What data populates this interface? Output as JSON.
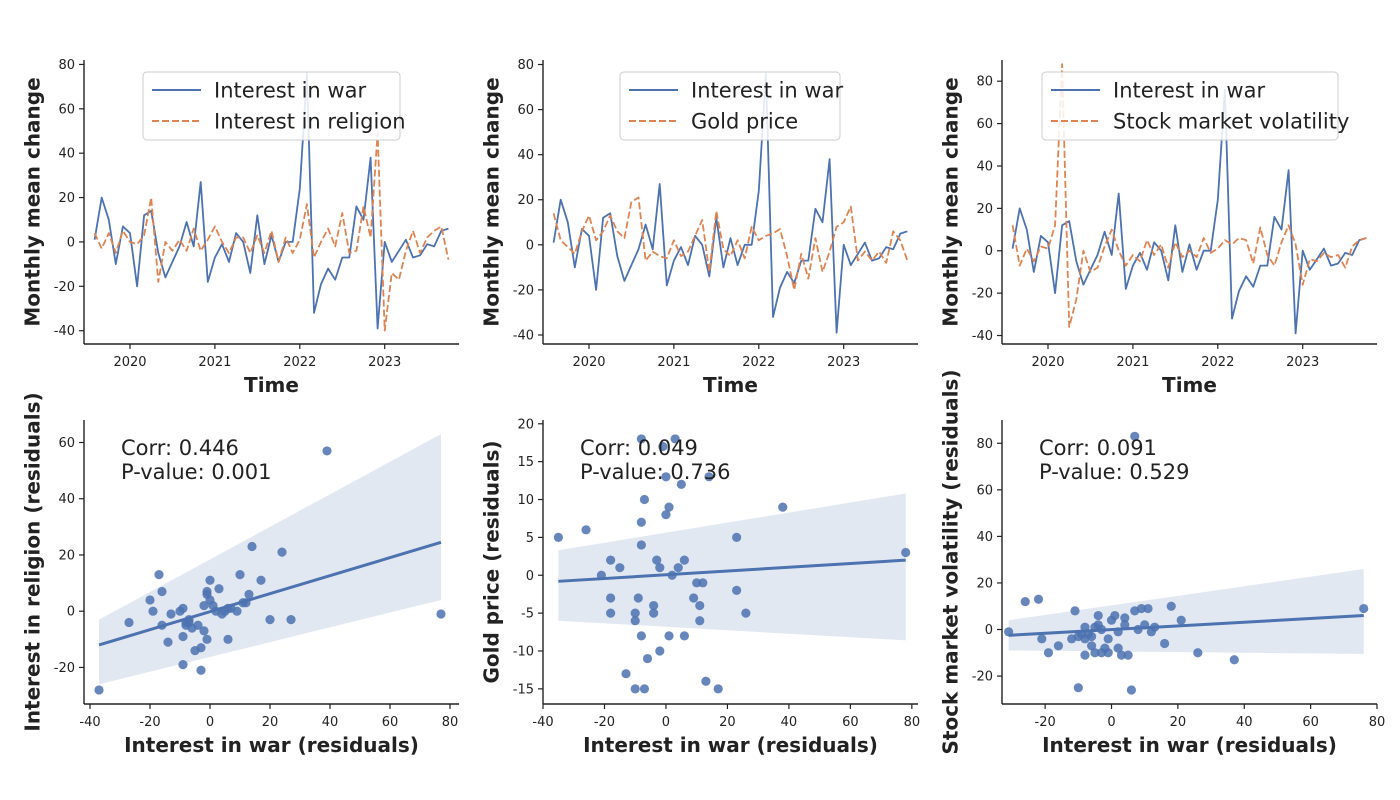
{
  "chart_data": [
    {
      "type": "line",
      "xlabel": "Time",
      "ylabel": "Monthly mean change",
      "ylim": [
        -46,
        82
      ],
      "yticks": [
        -40,
        -20,
        0,
        20,
        40,
        60,
        80
      ],
      "x_start": "2019-08",
      "xlim_months": [
        -1.5,
        51.5
      ],
      "xticks": [
        {
          "label": "2020",
          "month_index": 5
        },
        {
          "label": "2021",
          "month_index": 17
        },
        {
          "label": "2022",
          "month_index": 29
        },
        {
          "label": "2023",
          "month_index": 41
        }
      ],
      "series": [
        {
          "name": "Interest in war",
          "color": "#4c72b0",
          "dash": "solid",
          "values": [
            1,
            20,
            10,
            -10,
            7,
            4,
            -20,
            12,
            14,
            -5,
            -16,
            -9,
            -2,
            9,
            -2,
            27,
            -18,
            -7,
            -1,
            -9,
            4,
            0,
            -14,
            12,
            -10,
            3,
            -9,
            0,
            0,
            24,
            76,
            -32,
            -19,
            -12,
            -17,
            -7,
            -7,
            16,
            10,
            38,
            -39,
            0,
            -9,
            -4,
            1,
            -7,
            -6,
            -1,
            -2,
            5,
            6
          ]
        },
        {
          "name": "Interest in religion",
          "color": "#dd8452",
          "dash": "dashed",
          "values": [
            4,
            -3,
            4,
            -5,
            5,
            0,
            -1,
            3,
            20,
            -18,
            0,
            -4,
            1,
            -4,
            6,
            -4,
            1,
            7,
            0,
            -5,
            2,
            2,
            -5,
            3,
            -5,
            5,
            -9,
            2,
            -5,
            1,
            17,
            -7,
            0,
            6,
            -2,
            13,
            -5,
            -4,
            16,
            2,
            49,
            -40,
            -14,
            -17,
            -4,
            5,
            -5,
            2,
            5,
            7,
            -8
          ]
        }
      ]
    },
    {
      "type": "line",
      "xlabel": "Time",
      "ylabel": "Monthly mean change",
      "ylim": [
        -44,
        82
      ],
      "yticks": [
        -40,
        -20,
        0,
        20,
        40,
        60,
        80
      ],
      "x_start": "2019-08",
      "xlim_months": [
        -1.5,
        51.5
      ],
      "xticks": [
        {
          "label": "2020",
          "month_index": 5
        },
        {
          "label": "2021",
          "month_index": 17
        },
        {
          "label": "2022",
          "month_index": 29
        },
        {
          "label": "2023",
          "month_index": 41
        }
      ],
      "series": [
        {
          "name": "Interest in war",
          "color": "#4c72b0",
          "dash": "solid",
          "values": [
            1,
            20,
            10,
            -10,
            7,
            4,
            -20,
            12,
            14,
            -5,
            -16,
            -9,
            -2,
            9,
            -2,
            27,
            -18,
            -7,
            -1,
            -9,
            4,
            0,
            -14,
            12,
            -10,
            3,
            -9,
            0,
            0,
            24,
            76,
            -32,
            -19,
            -12,
            -17,
            -7,
            -7,
            16,
            10,
            38,
            -39,
            0,
            -9,
            -4,
            1,
            -7,
            -6,
            -1,
            -2,
            5,
            6
          ]
        },
        {
          "name": "Gold price",
          "color": "#dd8452",
          "dash": "dashed",
          "values": [
            14,
            2,
            -1,
            -4,
            6,
            13,
            2,
            6,
            13,
            6,
            3,
            19,
            21,
            -7,
            -3,
            -5,
            -6,
            2,
            -5,
            -3,
            4,
            11,
            -12,
            15,
            -2,
            -5,
            2,
            -6,
            8,
            2,
            4,
            5,
            7,
            -5,
            -20,
            -4,
            -15,
            3,
            -12,
            -3,
            8,
            10,
            17,
            -7,
            -3,
            -7,
            -3,
            -8,
            6,
            2,
            -7
          ]
        }
      ]
    },
    {
      "type": "line",
      "xlabel": "Time",
      "ylabel": "Monthly mean change",
      "ylim": [
        -44,
        90
      ],
      "yticks": [
        -40,
        -20,
        0,
        20,
        40,
        60,
        80
      ],
      "x_start": "2019-08",
      "xlim_months": [
        -1.5,
        51.5
      ],
      "xticks": [
        {
          "label": "2020",
          "month_index": 5
        },
        {
          "label": "2021",
          "month_index": 17
        },
        {
          "label": "2022",
          "month_index": 29
        },
        {
          "label": "2023",
          "month_index": 41
        }
      ],
      "series": [
        {
          "name": "Interest in war",
          "color": "#4c72b0",
          "dash": "solid",
          "values": [
            1,
            20,
            10,
            -10,
            7,
            4,
            -20,
            12,
            14,
            -5,
            -16,
            -9,
            -2,
            9,
            -2,
            27,
            -18,
            -7,
            -1,
            -9,
            4,
            0,
            -14,
            12,
            -10,
            3,
            -9,
            0,
            0,
            24,
            76,
            -32,
            -19,
            -12,
            -17,
            -7,
            -7,
            16,
            10,
            38,
            -39,
            0,
            -9,
            -4,
            1,
            -7,
            -6,
            -1,
            -2,
            5,
            6
          ]
        },
        {
          "name": "Stock market volatility",
          "color": "#dd8452",
          "dash": "dashed",
          "values": [
            12,
            -7,
            1,
            -5,
            2,
            1,
            12,
            88,
            -36,
            -23,
            0,
            -10,
            -8,
            2,
            10,
            0,
            -7,
            -2,
            -5,
            5,
            -2,
            3,
            -8,
            4,
            -3,
            0,
            -3,
            6,
            -1,
            1,
            5,
            3,
            6,
            5,
            -6,
            11,
            -2,
            -7,
            4,
            12,
            3,
            -16,
            -4,
            -5,
            -1,
            -3,
            -2,
            -8,
            2,
            5,
            6
          ]
        }
      ]
    },
    {
      "type": "scatter",
      "xlabel": "Interest in war (residuals)",
      "ylabel": "Interest in religion (residuals)",
      "xlim": [
        -42,
        83
      ],
      "ylim": [
        -33,
        68
      ],
      "xticks": [
        -40,
        -20,
        0,
        20,
        40,
        60,
        80
      ],
      "yticks": [
        -20,
        0,
        20,
        40,
        60
      ],
      "annotation": [
        "Corr: 0.446",
        "P-value: 0.001"
      ],
      "color": "#4c72b0",
      "regression": {
        "x": [
          -37,
          77
        ],
        "y": [
          -12,
          24.5
        ],
        "ci_upper": [
          -3,
          63
        ],
        "ci_lower": [
          -26,
          4
        ]
      },
      "points": [
        [
          -37,
          -28
        ],
        [
          -27,
          -4
        ],
        [
          -20,
          4
        ],
        [
          -17,
          13
        ],
        [
          -16,
          -5
        ],
        [
          -19,
          0
        ],
        [
          -16,
          7
        ],
        [
          -14,
          -11
        ],
        [
          -13,
          -1
        ],
        [
          -10,
          0
        ],
        [
          -9,
          -9
        ],
        [
          -9,
          1
        ],
        [
          -9,
          -19
        ],
        [
          -8,
          -5
        ],
        [
          -8,
          -4
        ],
        [
          -7,
          -3
        ],
        [
          -7,
          -4
        ],
        [
          -6,
          -6
        ],
        [
          -5,
          -14
        ],
        [
          -4,
          -5
        ],
        [
          -3,
          -21
        ],
        [
          -3,
          -13
        ],
        [
          -2,
          -7
        ],
        [
          -2,
          2
        ],
        [
          -1,
          6
        ],
        [
          -1,
          7
        ],
        [
          -1,
          -10
        ],
        [
          0,
          11
        ],
        [
          0,
          4
        ],
        [
          1,
          2
        ],
        [
          2,
          0
        ],
        [
          3,
          8
        ],
        [
          4,
          -1
        ],
        [
          5,
          0
        ],
        [
          6,
          1
        ],
        [
          6,
          -10
        ],
        [
          7,
          1
        ],
        [
          9,
          0
        ],
        [
          10,
          13
        ],
        [
          11,
          3
        ],
        [
          12,
          3
        ],
        [
          13,
          6
        ],
        [
          14,
          23
        ],
        [
          17,
          11
        ],
        [
          20,
          -3
        ],
        [
          24,
          21
        ],
        [
          27,
          -3
        ],
        [
          39,
          57
        ],
        [
          77,
          -1
        ]
      ]
    },
    {
      "type": "scatter",
      "xlabel": "Interest in war (residuals)",
      "ylabel": "Gold price (residuals)",
      "xlim": [
        -40,
        82
      ],
      "ylim": [
        -17,
        20.5
      ],
      "xticks": [
        -40,
        -20,
        0,
        20,
        40,
        60,
        80
      ],
      "yticks": [
        -15,
        -10,
        -5,
        0,
        5,
        10,
        15,
        20
      ],
      "annotation": [
        "Corr: 0.049",
        "P-value: 0.736"
      ],
      "color": "#4c72b0",
      "regression": {
        "x": [
          -35,
          78
        ],
        "y": [
          -0.8,
          2
        ],
        "ci_upper": [
          3.3,
          10.8
        ],
        "ci_lower": [
          -6,
          -8.6
        ]
      },
      "points": [
        [
          -35,
          5
        ],
        [
          -26,
          6
        ],
        [
          -21,
          0
        ],
        [
          -18,
          2
        ],
        [
          -18,
          -3
        ],
        [
          -18,
          -5
        ],
        [
          -15,
          1
        ],
        [
          -13,
          -13
        ],
        [
          -10,
          -5
        ],
        [
          -10,
          -6
        ],
        [
          -10,
          -15
        ],
        [
          -9,
          -3
        ],
        [
          -8,
          -8
        ],
        [
          -8,
          7
        ],
        [
          -8,
          4
        ],
        [
          -8,
          18
        ],
        [
          -7,
          -15
        ],
        [
          -7,
          10
        ],
        [
          -6,
          -11
        ],
        [
          -4,
          -5
        ],
        [
          -4,
          -4
        ],
        [
          -3,
          2
        ],
        [
          -2,
          1
        ],
        [
          -2,
          -10
        ],
        [
          -1,
          17
        ],
        [
          0,
          13
        ],
        [
          0,
          8
        ],
        [
          1,
          9
        ],
        [
          1,
          -8
        ],
        [
          2,
          0
        ],
        [
          3,
          18
        ],
        [
          4,
          1
        ],
        [
          5,
          12
        ],
        [
          6,
          2
        ],
        [
          6,
          -8
        ],
        [
          9,
          -3
        ],
        [
          10,
          -1
        ],
        [
          11,
          -4
        ],
        [
          11,
          -6
        ],
        [
          12,
          -1
        ],
        [
          13,
          -14
        ],
        [
          14,
          13
        ],
        [
          17,
          -15
        ],
        [
          23,
          -2
        ],
        [
          23,
          5
        ],
        [
          26,
          -5
        ],
        [
          38,
          9
        ],
        [
          78,
          3
        ]
      ]
    },
    {
      "type": "scatter",
      "xlabel": "Interest in war (residuals)",
      "ylabel": "Stock market volatility (residuals)",
      "xlim": [
        -33,
        80
      ],
      "ylim": [
        -32,
        90
      ],
      "xticks": [
        -20,
        0,
        20,
        40,
        60,
        80
      ],
      "yticks": [
        -20,
        0,
        20,
        40,
        60,
        80
      ],
      "annotation": [
        "Corr: 0.091",
        "P-value: 0.529"
      ],
      "color": "#4c72b0",
      "regression": {
        "x": [
          -31,
          76
        ],
        "y": [
          -2.5,
          6
        ],
        "ci_upper": [
          4,
          26
        ],
        "ci_lower": [
          -9,
          -10.5
        ]
      },
      "points": [
        [
          -31,
          -1
        ],
        [
          -26,
          12
        ],
        [
          -22,
          13
        ],
        [
          -21,
          -4
        ],
        [
          -19,
          -10
        ],
        [
          -16,
          -7
        ],
        [
          -12,
          -4
        ],
        [
          -11,
          8
        ],
        [
          -10,
          -3
        ],
        [
          -10,
          -25
        ],
        [
          -9,
          -2
        ],
        [
          -8,
          1
        ],
        [
          -8,
          -4
        ],
        [
          -8,
          -11
        ],
        [
          -7,
          -2
        ],
        [
          -6,
          -3
        ],
        [
          -6,
          -7
        ],
        [
          -5,
          -10
        ],
        [
          -5,
          1
        ],
        [
          -4,
          6
        ],
        [
          -4,
          2
        ],
        [
          -3,
          0
        ],
        [
          -3,
          -10
        ],
        [
          -2,
          -8
        ],
        [
          -1,
          -4
        ],
        [
          -1,
          -10
        ],
        [
          0,
          4
        ],
        [
          1,
          6
        ],
        [
          2,
          -1
        ],
        [
          2,
          -8
        ],
        [
          3,
          -11
        ],
        [
          4,
          5
        ],
        [
          4,
          2
        ],
        [
          5,
          -11
        ],
        [
          6,
          -26
        ],
        [
          7,
          83
        ],
        [
          7,
          8
        ],
        [
          8,
          0
        ],
        [
          9,
          9
        ],
        [
          10,
          2
        ],
        [
          11,
          9
        ],
        [
          12,
          -1
        ],
        [
          13,
          1
        ],
        [
          16,
          -6
        ],
        [
          18,
          10
        ],
        [
          21,
          4
        ],
        [
          26,
          -10
        ],
        [
          37,
          -13
        ],
        [
          76,
          9
        ]
      ]
    }
  ]
}
